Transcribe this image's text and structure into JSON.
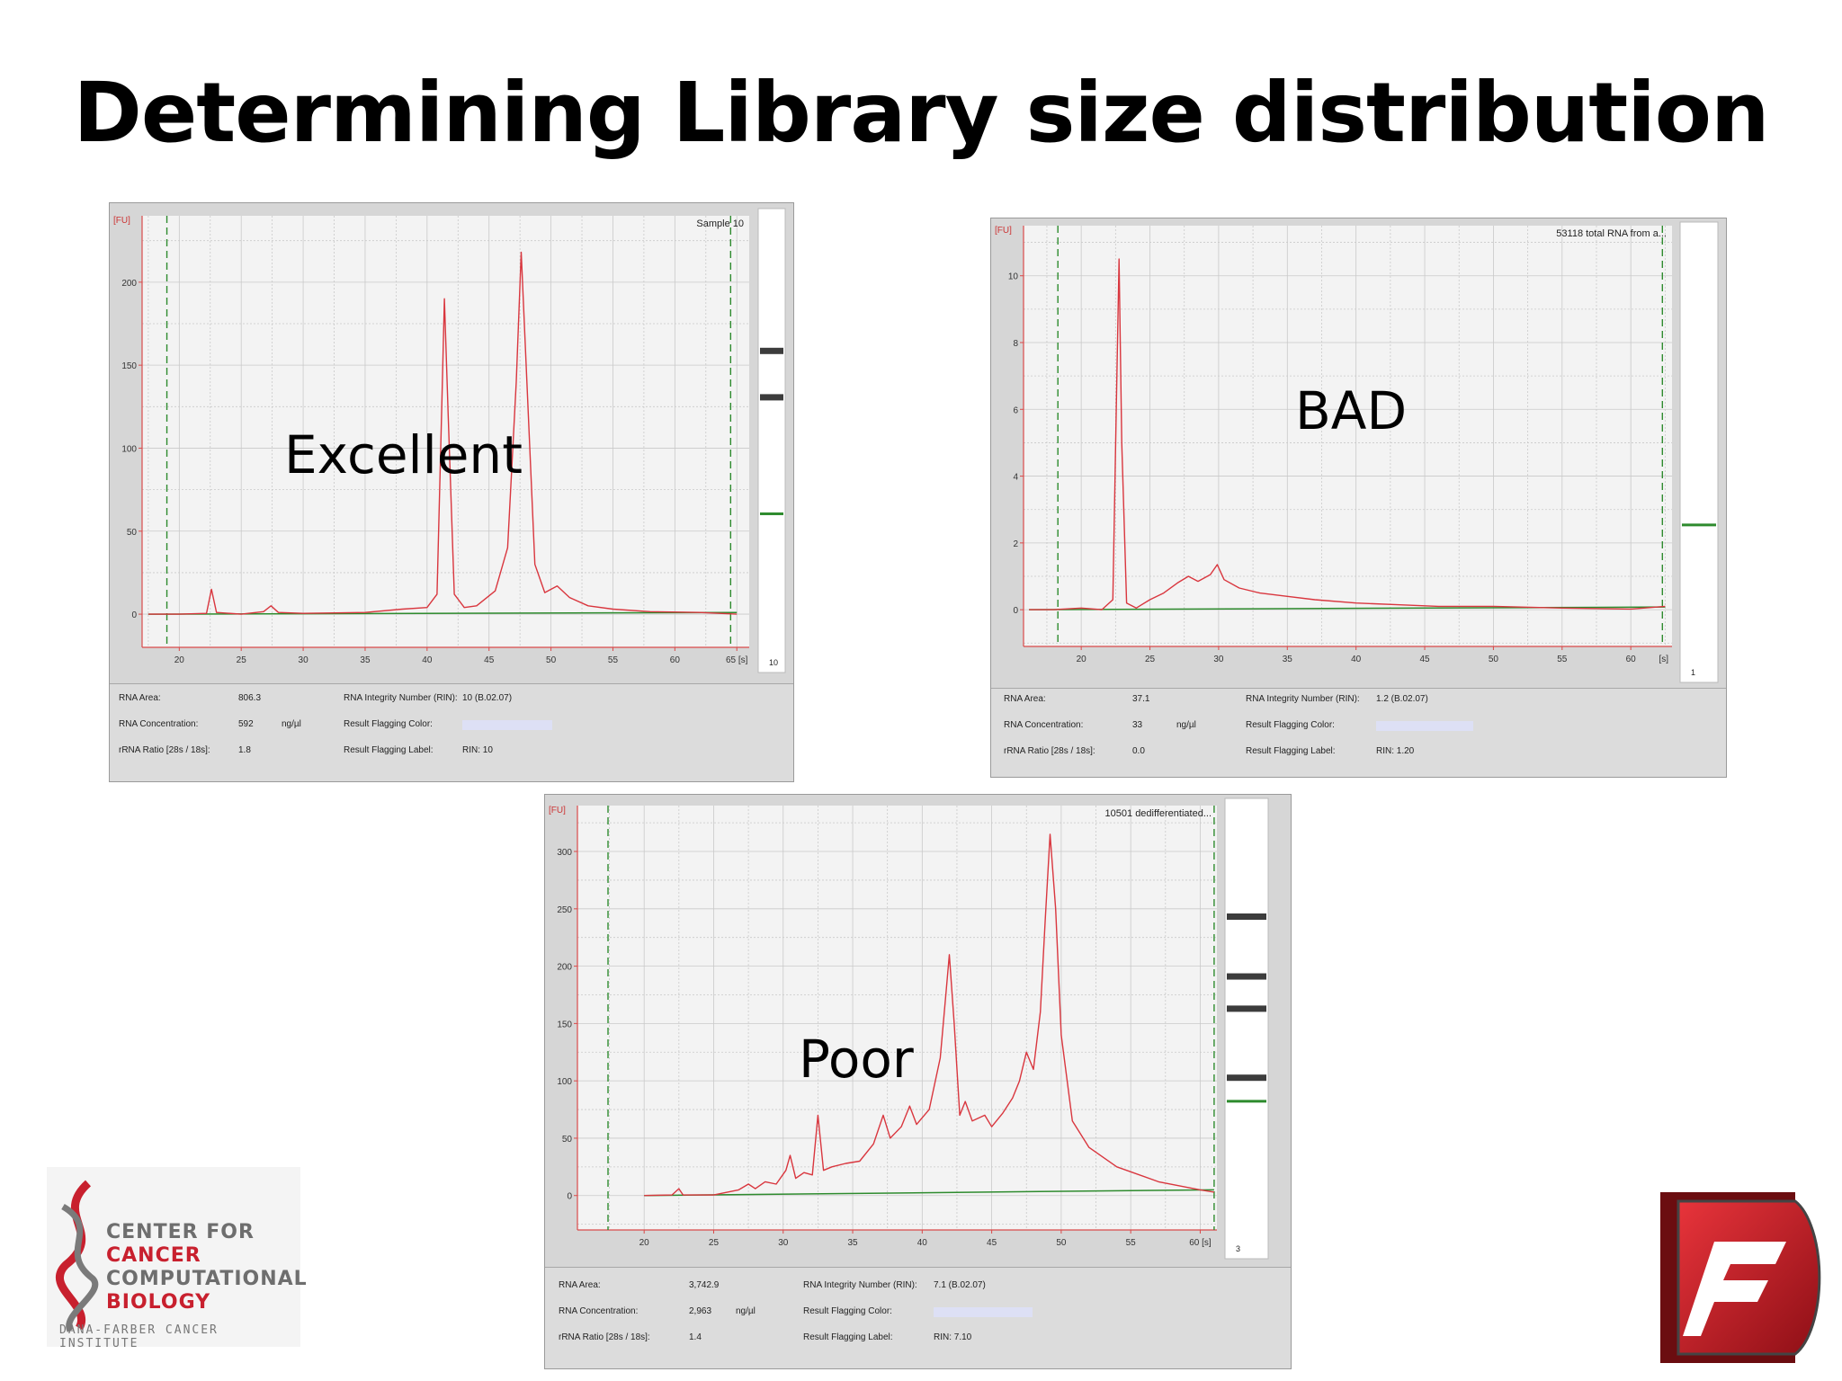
{
  "slide": {
    "title": "Determining Library size distribution"
  },
  "logos": {
    "left": {
      "lines": [
        "CENTER FOR",
        "CANCER",
        "COMPUTATIONAL",
        "BIOLOGY"
      ],
      "subtitle": "DANA-FARBER CANCER INSTITUTE",
      "colors": {
        "red": "#c8202e",
        "gray": "#6e6e6e"
      }
    },
    "right": {
      "icon": "red-f-logo"
    }
  },
  "colors": {
    "trace": "#d9363e",
    "baseline": "#2e8b2e",
    "marker": "#2e8b2e",
    "grid": "#c9c9c9",
    "axis": "#d94a4a",
    "flag": "#dde0f5"
  },
  "chart_data": [
    {
      "type": "line",
      "label": "Excellent",
      "sample_label": "Sample 10",
      "y_unit": "[FU]",
      "x_unit": "[s]",
      "xticks": [
        20,
        25,
        30,
        35,
        40,
        45,
        50,
        55,
        60,
        65
      ],
      "xtick_labels": [
        "20",
        "25",
        "30",
        "35",
        "40",
        "45",
        "50",
        "55",
        "60",
        "65 [s]"
      ],
      "yticks": [
        0,
        50,
        100,
        150,
        200
      ],
      "xlim": [
        17,
        66
      ],
      "ylim": [
        -20,
        240
      ],
      "markers": [
        19.0,
        64.5
      ],
      "lane_label": "10",
      "lane_bands": [
        0.3,
        0.4
      ],
      "points": [
        [
          17.5,
          0
        ],
        [
          20,
          0
        ],
        [
          22.2,
          0.5
        ],
        [
          22.6,
          15
        ],
        [
          23.0,
          1
        ],
        [
          25,
          0
        ],
        [
          26.8,
          1.5
        ],
        [
          27.4,
          5
        ],
        [
          28.0,
          1
        ],
        [
          30,
          0.5
        ],
        [
          35,
          1
        ],
        [
          38,
          3
        ],
        [
          40,
          4
        ],
        [
          40.8,
          12
        ],
        [
          41.2,
          130
        ],
        [
          41.4,
          190
        ],
        [
          41.7,
          120
        ],
        [
          42.2,
          12
        ],
        [
          43,
          4
        ],
        [
          44,
          5
        ],
        [
          45.5,
          14
        ],
        [
          46.5,
          40
        ],
        [
          47.2,
          140
        ],
        [
          47.6,
          218
        ],
        [
          48.0,
          150
        ],
        [
          48.7,
          30
        ],
        [
          49.5,
          13
        ],
        [
          50.5,
          17
        ],
        [
          51.5,
          10
        ],
        [
          53,
          5
        ],
        [
          55,
          3
        ],
        [
          58,
          1.5
        ],
        [
          62,
          1
        ],
        [
          65,
          0
        ]
      ],
      "baseline": [
        [
          17.5,
          0
        ],
        [
          65,
          1
        ]
      ],
      "info": {
        "rna_area_label": "RNA Area:",
        "rna_area": "806.3",
        "rna_conc_label": "RNA Concentration:",
        "rna_conc": "592",
        "conc_unit": "ng/µl",
        "ratio_label": "rRNA Ratio [28s / 18s]:",
        "ratio": "1.8",
        "rin_label": "RNA Integrity Number (RIN):",
        "rin": "10  (B.02.07)",
        "flag_color_label": "Result Flagging Color:",
        "flag_label_label": "Result Flagging Label:",
        "flag_label": "RIN: 10"
      }
    },
    {
      "type": "line",
      "label": "BAD",
      "sample_label": "53118 total RNA from a...",
      "y_unit": "[FU]",
      "x_unit": "[s]",
      "xticks": [
        20,
        25,
        30,
        35,
        40,
        45,
        50,
        55,
        60
      ],
      "xtick_labels": [
        "20",
        "25",
        "30",
        "35",
        "40",
        "45",
        "50",
        "55",
        "60"
      ],
      "yticks": [
        0,
        2,
        4,
        6,
        8,
        10
      ],
      "xlim": [
        15.8,
        63
      ],
      "ylim": [
        -1.1,
        11.5
      ],
      "markers": [
        18.3,
        62.3
      ],
      "lane_label": "1",
      "lane_bands": [],
      "points": [
        [
          16.2,
          0
        ],
        [
          18,
          0
        ],
        [
          20,
          0.05
        ],
        [
          21.5,
          0
        ],
        [
          22.3,
          0.3
        ],
        [
          22.55,
          6
        ],
        [
          22.75,
          10.5
        ],
        [
          22.95,
          5
        ],
        [
          23.3,
          0.2
        ],
        [
          24,
          0.05
        ],
        [
          25,
          0.3
        ],
        [
          26,
          0.5
        ],
        [
          27,
          0.8
        ],
        [
          27.8,
          1.0
        ],
        [
          28.5,
          0.85
        ],
        [
          29.4,
          1.05
        ],
        [
          29.9,
          1.35
        ],
        [
          30.4,
          0.9
        ],
        [
          31.5,
          0.65
        ],
        [
          33,
          0.5
        ],
        [
          35,
          0.4
        ],
        [
          37,
          0.3
        ],
        [
          40,
          0.2
        ],
        [
          43,
          0.15
        ],
        [
          46,
          0.1
        ],
        [
          50,
          0.1
        ],
        [
          55,
          0.05
        ],
        [
          60,
          0.02
        ],
        [
          62.5,
          0.1
        ]
      ],
      "baseline": [
        [
          16.2,
          0
        ],
        [
          62.5,
          0.08
        ]
      ],
      "info": {
        "rna_area_label": "RNA Area:",
        "rna_area": "37.1",
        "rna_conc_label": "RNA Concentration:",
        "rna_conc": "33",
        "conc_unit": "ng/µl",
        "ratio_label": "rRNA Ratio [28s / 18s]:",
        "ratio": "0.0",
        "rin_label": "RNA Integrity Number (RIN):",
        "rin": "1.2  (B.02.07)",
        "flag_color_label": "Result Flagging Color:",
        "flag_label_label": "Result Flagging Label:",
        "flag_label": "RIN: 1.20"
      }
    },
    {
      "type": "line",
      "label": "Poor",
      "sample_label": "10501 dedifferentiated...",
      "y_unit": "[FU]",
      "x_unit": "[s]",
      "xticks": [
        20,
        25,
        30,
        35,
        40,
        45,
        50,
        55,
        60
      ],
      "xtick_labels": [
        "20",
        "25",
        "30",
        "35",
        "40",
        "45",
        "50",
        "55",
        "60 [s]"
      ],
      "yticks": [
        0,
        50,
        100,
        150,
        200,
        250,
        300
      ],
      "xlim": [
        15.2,
        61.2
      ],
      "ylim": [
        -30,
        340
      ],
      "markers": [
        17.4,
        61.0
      ],
      "lane_label": "3",
      "lane_bands": [
        0.25,
        0.38,
        0.45,
        0.6
      ],
      "points": [
        [
          20,
          0
        ],
        [
          22,
          0.5
        ],
        [
          22.5,
          6
        ],
        [
          22.8,
          0.5
        ],
        [
          25,
          0.5
        ],
        [
          26.8,
          5
        ],
        [
          27.5,
          10
        ],
        [
          28,
          6
        ],
        [
          28.7,
          12
        ],
        [
          29.5,
          10
        ],
        [
          30.2,
          22
        ],
        [
          30.5,
          35
        ],
        [
          30.9,
          15
        ],
        [
          31.5,
          20
        ],
        [
          32.1,
          18
        ],
        [
          32.5,
          70
        ],
        [
          32.9,
          22
        ],
        [
          33.5,
          25
        ],
        [
          34.5,
          28
        ],
        [
          35.5,
          30
        ],
        [
          36.5,
          45
        ],
        [
          37.2,
          70
        ],
        [
          37.7,
          50
        ],
        [
          38.5,
          60
        ],
        [
          39.1,
          78
        ],
        [
          39.6,
          62
        ],
        [
          40.5,
          75
        ],
        [
          41.3,
          120
        ],
        [
          41.7,
          175
        ],
        [
          41.95,
          210
        ],
        [
          42.3,
          150
        ],
        [
          42.7,
          70
        ],
        [
          43.1,
          82
        ],
        [
          43.6,
          65
        ],
        [
          44.5,
          70
        ],
        [
          45.0,
          60
        ],
        [
          45.8,
          72
        ],
        [
          46.5,
          85
        ],
        [
          47.0,
          100
        ],
        [
          47.5,
          125
        ],
        [
          48.0,
          110
        ],
        [
          48.5,
          160
        ],
        [
          48.85,
          240
        ],
        [
          49.2,
          315
        ],
        [
          49.6,
          250
        ],
        [
          50.0,
          140
        ],
        [
          50.8,
          65
        ],
        [
          52,
          42
        ],
        [
          54,
          25
        ],
        [
          57,
          12
        ],
        [
          60,
          5
        ],
        [
          61,
          3
        ]
      ],
      "baseline": [
        [
          20,
          0
        ],
        [
          61,
          5
        ]
      ],
      "info": {
        "rna_area_label": "RNA Area:",
        "rna_area": "3,742.9",
        "rna_conc_label": "RNA Concentration:",
        "rna_conc": "2,963",
        "conc_unit": "ng/µl",
        "ratio_label": "rRNA Ratio [28s / 18s]:",
        "ratio": "1.4",
        "rin_label": "RNA Integrity Number (RIN):",
        "rin": "7.1  (B.02.07)",
        "flag_color_label": "Result Flagging Color:",
        "flag_label_label": "Result Flagging Label:",
        "flag_label": "RIN: 7.10"
      }
    }
  ]
}
